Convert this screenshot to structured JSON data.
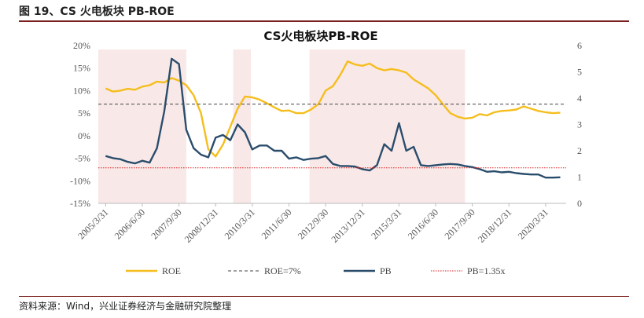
{
  "figure_title": "图 19、CS 火电板块 PB-ROE",
  "source": "资料来源：Wind，兴业证券经济与金融研究院整理",
  "chart_data": {
    "type": "line",
    "title": "CS火电板块PB-ROE",
    "x_ticks": [
      "2005/3/31",
      "2006/6/30",
      "2007/9/30",
      "2008/12/31",
      "2010/3/31",
      "2011/6/30",
      "2012/9/30",
      "2013/12/31",
      "2015/3/31",
      "2016/6/30",
      "2017/9/30",
      "2018/12/31",
      "2020/3/31"
    ],
    "y_left": {
      "ticks": [
        "20%",
        "15%",
        "10%",
        "5%",
        "0%",
        "-5%",
        "-10%",
        "-15%"
      ],
      "lim": [
        -15,
        20
      ]
    },
    "y_right": {
      "ticks": [
        "6",
        "5",
        "4",
        "3",
        "2",
        "1",
        "0"
      ],
      "lim": [
        0,
        6
      ]
    },
    "grid": false,
    "legend_position": "bottom",
    "shaded_periods": [
      [
        2005.0,
        2008.0
      ],
      [
        2009.6,
        2010.2
      ],
      [
        2012.2,
        2017.5
      ]
    ],
    "series": [
      {
        "name": "ROE",
        "axis": "left",
        "color": "#f5be1e",
        "style": "solid",
        "x": [
          2005.25,
          2005.5,
          2005.75,
          2006.0,
          2006.25,
          2006.5,
          2006.75,
          2007.0,
          2007.25,
          2007.5,
          2007.75,
          2008.0,
          2008.25,
          2008.5,
          2008.75,
          2009.0,
          2009.25,
          2009.5,
          2009.75,
          2010.0,
          2010.25,
          2010.5,
          2010.75,
          2011.0,
          2011.25,
          2011.5,
          2011.75,
          2012.0,
          2012.25,
          2012.5,
          2012.75,
          2013.0,
          2013.25,
          2013.5,
          2013.75,
          2014.0,
          2014.25,
          2014.5,
          2014.75,
          2015.0,
          2015.25,
          2015.5,
          2015.75,
          2016.0,
          2016.25,
          2016.5,
          2016.75,
          2017.0,
          2017.25,
          2017.5,
          2017.75,
          2018.0,
          2018.25,
          2018.5,
          2018.75,
          2019.0,
          2019.25,
          2019.5,
          2019.75,
          2020.0,
          2020.25,
          2020.5,
          2020.75
        ],
        "y": [
          10.5,
          9.8,
          10.0,
          10.4,
          10.2,
          10.9,
          11.2,
          12.0,
          11.8,
          12.8,
          12.2,
          11.2,
          9.0,
          5.0,
          -3.0,
          -4.6,
          -2.0,
          2.0,
          6.0,
          8.7,
          8.5,
          8.0,
          7.2,
          6.3,
          5.5,
          5.6,
          5.0,
          5.0,
          5.8,
          7.0,
          10.0,
          11.0,
          13.5,
          16.5,
          15.8,
          15.5,
          16.0,
          15.0,
          14.5,
          14.8,
          14.5,
          14.0,
          12.5,
          11.5,
          10.5,
          9.0,
          7.0,
          5.0,
          4.2,
          3.8,
          4.0,
          4.8,
          4.5,
          5.2,
          5.5,
          5.6,
          5.8,
          6.5,
          6.0,
          5.5,
          5.2,
          5.0,
          5.1
        ]
      },
      {
        "name": "ROE=7%",
        "axis": "left",
        "color": "#444444",
        "style": "dashed",
        "value": 7
      },
      {
        "name": "PB",
        "axis": "right",
        "color": "#2a4d6c",
        "style": "solid",
        "x": [
          2005.25,
          2005.5,
          2005.75,
          2006.0,
          2006.25,
          2006.5,
          2006.75,
          2007.0,
          2007.25,
          2007.5,
          2007.75,
          2008.0,
          2008.25,
          2008.5,
          2008.75,
          2009.0,
          2009.25,
          2009.5,
          2009.75,
          2010.0,
          2010.25,
          2010.5,
          2010.75,
          2011.0,
          2011.25,
          2011.5,
          2011.75,
          2012.0,
          2012.25,
          2012.5,
          2012.75,
          2013.0,
          2013.25,
          2013.5,
          2013.75,
          2014.0,
          2014.25,
          2014.5,
          2014.75,
          2015.0,
          2015.25,
          2015.5,
          2015.75,
          2016.0,
          2016.25,
          2016.5,
          2016.75,
          2017.0,
          2017.25,
          2017.5,
          2017.75,
          2018.0,
          2018.25,
          2018.5,
          2018.75,
          2019.0,
          2019.25,
          2019.5,
          2019.75,
          2020.0,
          2020.25,
          2020.5,
          2020.75
        ],
        "y": [
          1.8,
          1.72,
          1.68,
          1.58,
          1.52,
          1.62,
          1.55,
          2.1,
          3.5,
          5.5,
          5.3,
          2.8,
          2.1,
          1.85,
          1.75,
          2.5,
          2.6,
          2.4,
          3.0,
          2.7,
          2.05,
          2.2,
          2.2,
          2.0,
          2.0,
          1.7,
          1.75,
          1.65,
          1.7,
          1.72,
          1.8,
          1.5,
          1.42,
          1.42,
          1.4,
          1.3,
          1.25,
          1.45,
          2.25,
          2.0,
          3.05,
          2.0,
          2.15,
          1.45,
          1.42,
          1.45,
          1.48,
          1.5,
          1.48,
          1.42,
          1.38,
          1.3,
          1.2,
          1.22,
          1.18,
          1.2,
          1.15,
          1.12,
          1.1,
          1.1,
          0.98,
          0.98,
          0.99
        ]
      },
      {
        "name": "PB=1.35x",
        "axis": "right",
        "color": "#e02020",
        "style": "dotted",
        "value": 1.35
      }
    ]
  }
}
